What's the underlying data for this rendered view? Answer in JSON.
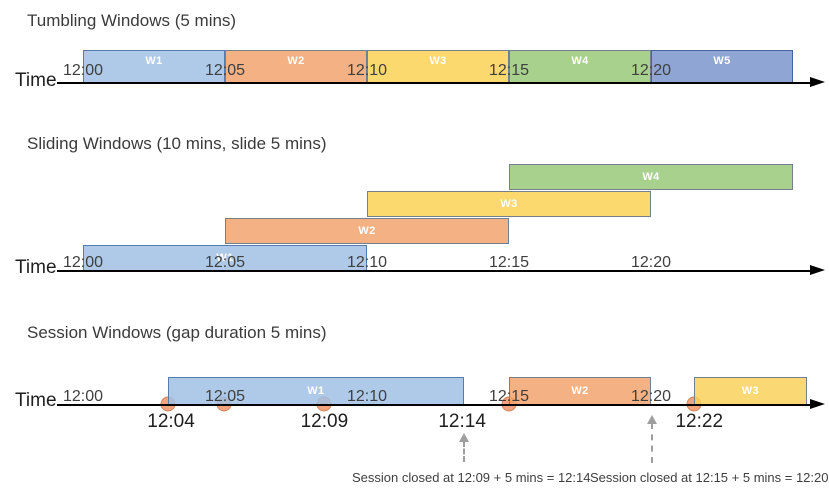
{
  "palette": {
    "blue": "#aecae8",
    "orange": "#f4b183",
    "yellow": "#fbd96e",
    "green": "#a9d18e",
    "indigo": "#8fa6d4",
    "event_dot": "#f2a47e",
    "axis": "#000000",
    "annotation_arrow": "#9e9e9e"
  },
  "diagram": {
    "sections": [
      {
        "key": "tumbling",
        "title": "Tumbling Windows (5 mins)",
        "time_label": "Time",
        "ticks": [
          {
            "label": "12:00",
            "min": 0
          },
          {
            "label": "12:05",
            "min": 5
          },
          {
            "label": "12:10",
            "min": 10
          },
          {
            "label": "12:15",
            "min": 15
          },
          {
            "label": "12:20",
            "min": 20
          }
        ],
        "windows": [
          {
            "label": "W1",
            "color": "blue",
            "start_min": 0,
            "end_min": 5
          },
          {
            "label": "W2",
            "color": "orange",
            "start_min": 5,
            "end_min": 10
          },
          {
            "label": "W3",
            "color": "yellow",
            "start_min": 10,
            "end_min": 15
          },
          {
            "label": "W4",
            "color": "green",
            "start_min": 15,
            "end_min": 20
          },
          {
            "label": "W5",
            "color": "indigo",
            "start_min": 20,
            "end_min": 25
          }
        ]
      },
      {
        "key": "sliding",
        "title": "Sliding Windows (10 mins, slide 5 mins)",
        "time_label": "Time",
        "ticks": [
          {
            "label": "12:00",
            "min": 0
          },
          {
            "label": "12:05",
            "min": 5
          },
          {
            "label": "12:10",
            "min": 10
          },
          {
            "label": "12:15",
            "min": 15
          },
          {
            "label": "12:20",
            "min": 20
          }
        ],
        "windows": [
          {
            "label": "W1",
            "color": "blue",
            "start_min": 0,
            "end_min": 10,
            "row": 0
          },
          {
            "label": "W2",
            "color": "orange",
            "start_min": 5,
            "end_min": 15,
            "row": 1
          },
          {
            "label": "W3",
            "color": "yellow",
            "start_min": 10,
            "end_min": 20,
            "row": 2
          },
          {
            "label": "W4",
            "color": "green",
            "start_min": 15,
            "end_min": 25,
            "row": 3
          }
        ]
      },
      {
        "key": "session",
        "title": "Session Windows (gap duration 5 mins)",
        "time_label": "Time",
        "ticks": [
          {
            "label": "12:00",
            "min": 0
          },
          {
            "label": "12:05",
            "min": 5
          },
          {
            "label": "12:10",
            "min": 10
          },
          {
            "label": "12:15",
            "min": 15
          },
          {
            "label": "12:20",
            "min": 20
          }
        ],
        "windows": [
          {
            "label": "W1",
            "color": "blue",
            "start_min": 3,
            "end_min": 13.4
          },
          {
            "label": "W2",
            "color": "orange",
            "start_min": 15,
            "end_min": 20
          },
          {
            "label": "W3",
            "color": "yellow",
            "start_min": 21.5,
            "end_min": 25.5
          }
        ],
        "event_dots": [
          {
            "min": 3
          },
          {
            "min": 4.95
          },
          {
            "min": 8.5
          },
          {
            "min": 15
          },
          {
            "min": 21.5
          }
        ],
        "event_labels": [
          {
            "label": "12:04",
            "min": 3.1
          },
          {
            "label": "12:09",
            "min": 8.5
          },
          {
            "label": "12:14",
            "min": 13.35
          },
          {
            "label": "12:22",
            "min": 21.7
          }
        ],
        "annotations": [
          {
            "text": "Session closed at 12:09 + 5 mins = 12:14",
            "arrow_min": 13.4
          },
          {
            "text": "Session closed at 12:15 + 5 mins = 12:20",
            "arrow_min": 20.05
          }
        ]
      }
    ]
  }
}
